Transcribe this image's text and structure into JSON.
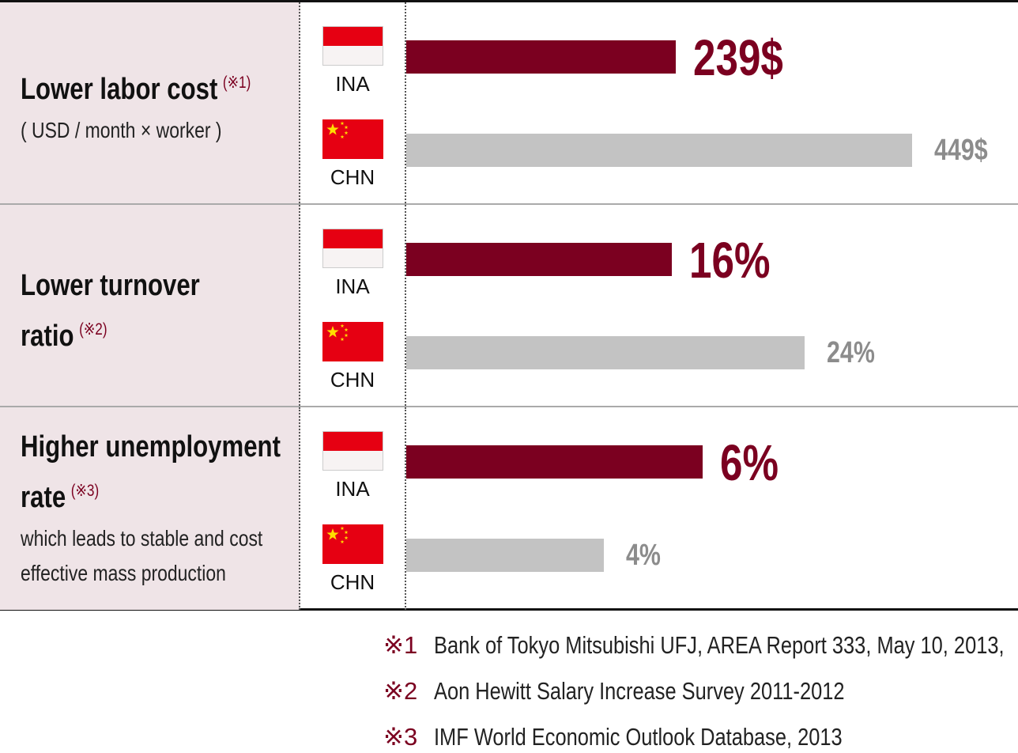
{
  "chart_data": [
    {
      "type": "bar",
      "title": "Lower labor cost",
      "note": "(※1)",
      "subtitle": "( USD / month × worker )",
      "categories": [
        "INA",
        "CHN"
      ],
      "values": [
        239,
        449
      ],
      "value_labels": [
        "239$",
        "449$"
      ],
      "colors": [
        "#7b0020",
        "#c3c3c3"
      ]
    },
    {
      "type": "bar",
      "title": "Lower turnover ratio",
      "note": "(※2)",
      "categories": [
        "INA",
        "CHN"
      ],
      "values": [
        16,
        24
      ],
      "value_labels": [
        "16%",
        "24%"
      ],
      "colors": [
        "#7b0020",
        "#c3c3c3"
      ]
    },
    {
      "type": "bar",
      "title": "Higher unemployment rate",
      "note": "(※3)",
      "subtitle": "which leads to stable and cost effective mass production",
      "categories": [
        "INA",
        "CHN"
      ],
      "values": [
        6,
        4
      ],
      "value_labels": [
        "6%",
        "4%"
      ],
      "colors": [
        "#7b0020",
        "#c3c3c3"
      ]
    }
  ],
  "footnotes": [
    {
      "mark": "※1",
      "text": "Bank of Tokyo Mitsubishi UFJ, AREA Report 333, May 10, 2013,"
    },
    {
      "mark": "※2",
      "text": "Aon Hewitt Salary Increase Survey 2011-2012"
    },
    {
      "mark": "※3",
      "text": "IMF World Economic Outlook Database, 2013"
    }
  ]
}
